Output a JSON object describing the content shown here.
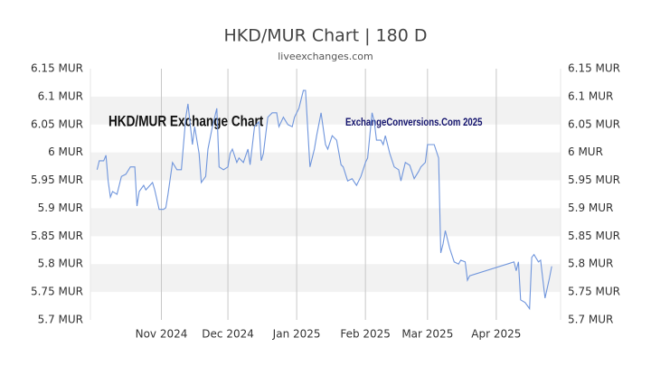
{
  "chart_data": {
    "type": "line",
    "title": "HKD/MUR Chart | 180 D",
    "subtitle": "liveexchanges.com",
    "annotations": [
      "HKD/MUR Exchange Chart",
      "ExchangeConversions.Com 2025"
    ],
    "x": [
      3,
      4,
      6,
      7,
      8,
      9,
      10,
      12,
      14,
      16,
      18,
      20,
      21,
      22,
      24,
      25,
      28,
      29,
      31,
      33,
      34,
      35,
      37,
      39,
      41,
      43,
      44,
      46,
      47,
      49,
      50,
      52,
      53,
      55,
      57,
      58,
      60,
      62,
      63,
      64,
      66,
      67,
      69,
      71,
      72,
      74,
      76,
      77,
      78,
      80,
      82,
      84,
      85,
      87,
      89,
      91,
      92,
      94,
      96,
      97,
      99,
      101,
      102,
      104,
      106,
      107,
      109,
      111,
      113,
      114,
      116,
      118,
      120,
      122,
      124,
      125,
      127,
      128,
      129,
      131,
      132,
      133,
      135,
      137,
      139,
      140,
      142,
      144,
      146,
      148,
      149,
      151,
      152,
      155,
      157,
      158,
      159,
      160,
      162,
      164,
      166,
      167,
      169,
      170,
      171,
      191,
      192,
      193,
      194,
      196,
      198,
      199,
      200,
      202,
      203,
      205,
      207,
      208
    ],
    "series": [
      {
        "name": "HKD/MUR",
        "color": "#6f95dc",
        "values": [
          5.969,
          5.985,
          5.985,
          5.995,
          5.949,
          5.92,
          5.93,
          5.925,
          5.957,
          5.961,
          5.974,
          5.974,
          5.904,
          5.93,
          5.941,
          5.933,
          5.946,
          5.933,
          5.898,
          5.898,
          5.901,
          5.925,
          5.982,
          5.969,
          5.969,
          6.063,
          6.087,
          6.014,
          6.046,
          5.998,
          5.946,
          5.957,
          6.006,
          6.046,
          6.079,
          5.974,
          5.969,
          5.974,
          5.998,
          6.006,
          5.982,
          5.99,
          5.982,
          6.006,
          5.978,
          6.046,
          6.055,
          5.985,
          5.998,
          6.063,
          6.071,
          6.071,
          6.046,
          6.063,
          6.05,
          6.046,
          6.063,
          6.079,
          6.111,
          6.111,
          5.974,
          6.006,
          6.03,
          6.071,
          6.014,
          6.006,
          6.03,
          6.022,
          5.978,
          5.974,
          5.949,
          5.953,
          5.941,
          5.957,
          5.982,
          5.99,
          6.071,
          6.055,
          6.022,
          6.022,
          6.014,
          6.03,
          5.998,
          5.974,
          5.969,
          5.949,
          5.982,
          5.977,
          5.953,
          5.966,
          5.974,
          5.982,
          6.014,
          6.014,
          5.99,
          5.82,
          5.836,
          5.86,
          5.828,
          5.804,
          5.8,
          5.807,
          5.804,
          5.771,
          5.779,
          5.804,
          5.788,
          5.804,
          5.736,
          5.731,
          5.72,
          5.812,
          5.817,
          5.804,
          5.807,
          5.739,
          5.775,
          5.796
        ]
      }
    ],
    "xlim": [
      0,
      212
    ],
    "xticks": [
      {
        "value": 32,
        "label": "Nov 2024"
      },
      {
        "value": 62,
        "label": "Dec 2024"
      },
      {
        "value": 93,
        "label": "Jan 2025"
      },
      {
        "value": 124,
        "label": "Feb 2025"
      },
      {
        "value": 152,
        "label": "Mar 2025"
      },
      {
        "value": 183,
        "label": "Apr 2025"
      }
    ],
    "ylim": [
      5.7,
      6.15
    ],
    "yticks": [
      {
        "value": 6.15,
        "label": "6.15 MUR"
      },
      {
        "value": 6.1,
        "label": "6.1 MUR"
      },
      {
        "value": 6.05,
        "label": "6.05 MUR"
      },
      {
        "value": 6,
        "label": "6 MUR"
      },
      {
        "value": 5.95,
        "label": "5.95 MUR"
      },
      {
        "value": 5.9,
        "label": "5.9 MUR"
      },
      {
        "value": 5.85,
        "label": "5.85 MUR"
      },
      {
        "value": 5.8,
        "label": "5.8 MUR"
      },
      {
        "value": 5.75,
        "label": "5.75 MUR"
      },
      {
        "value": 5.7,
        "label": "5.7 MUR"
      }
    ],
    "grid": true
  }
}
